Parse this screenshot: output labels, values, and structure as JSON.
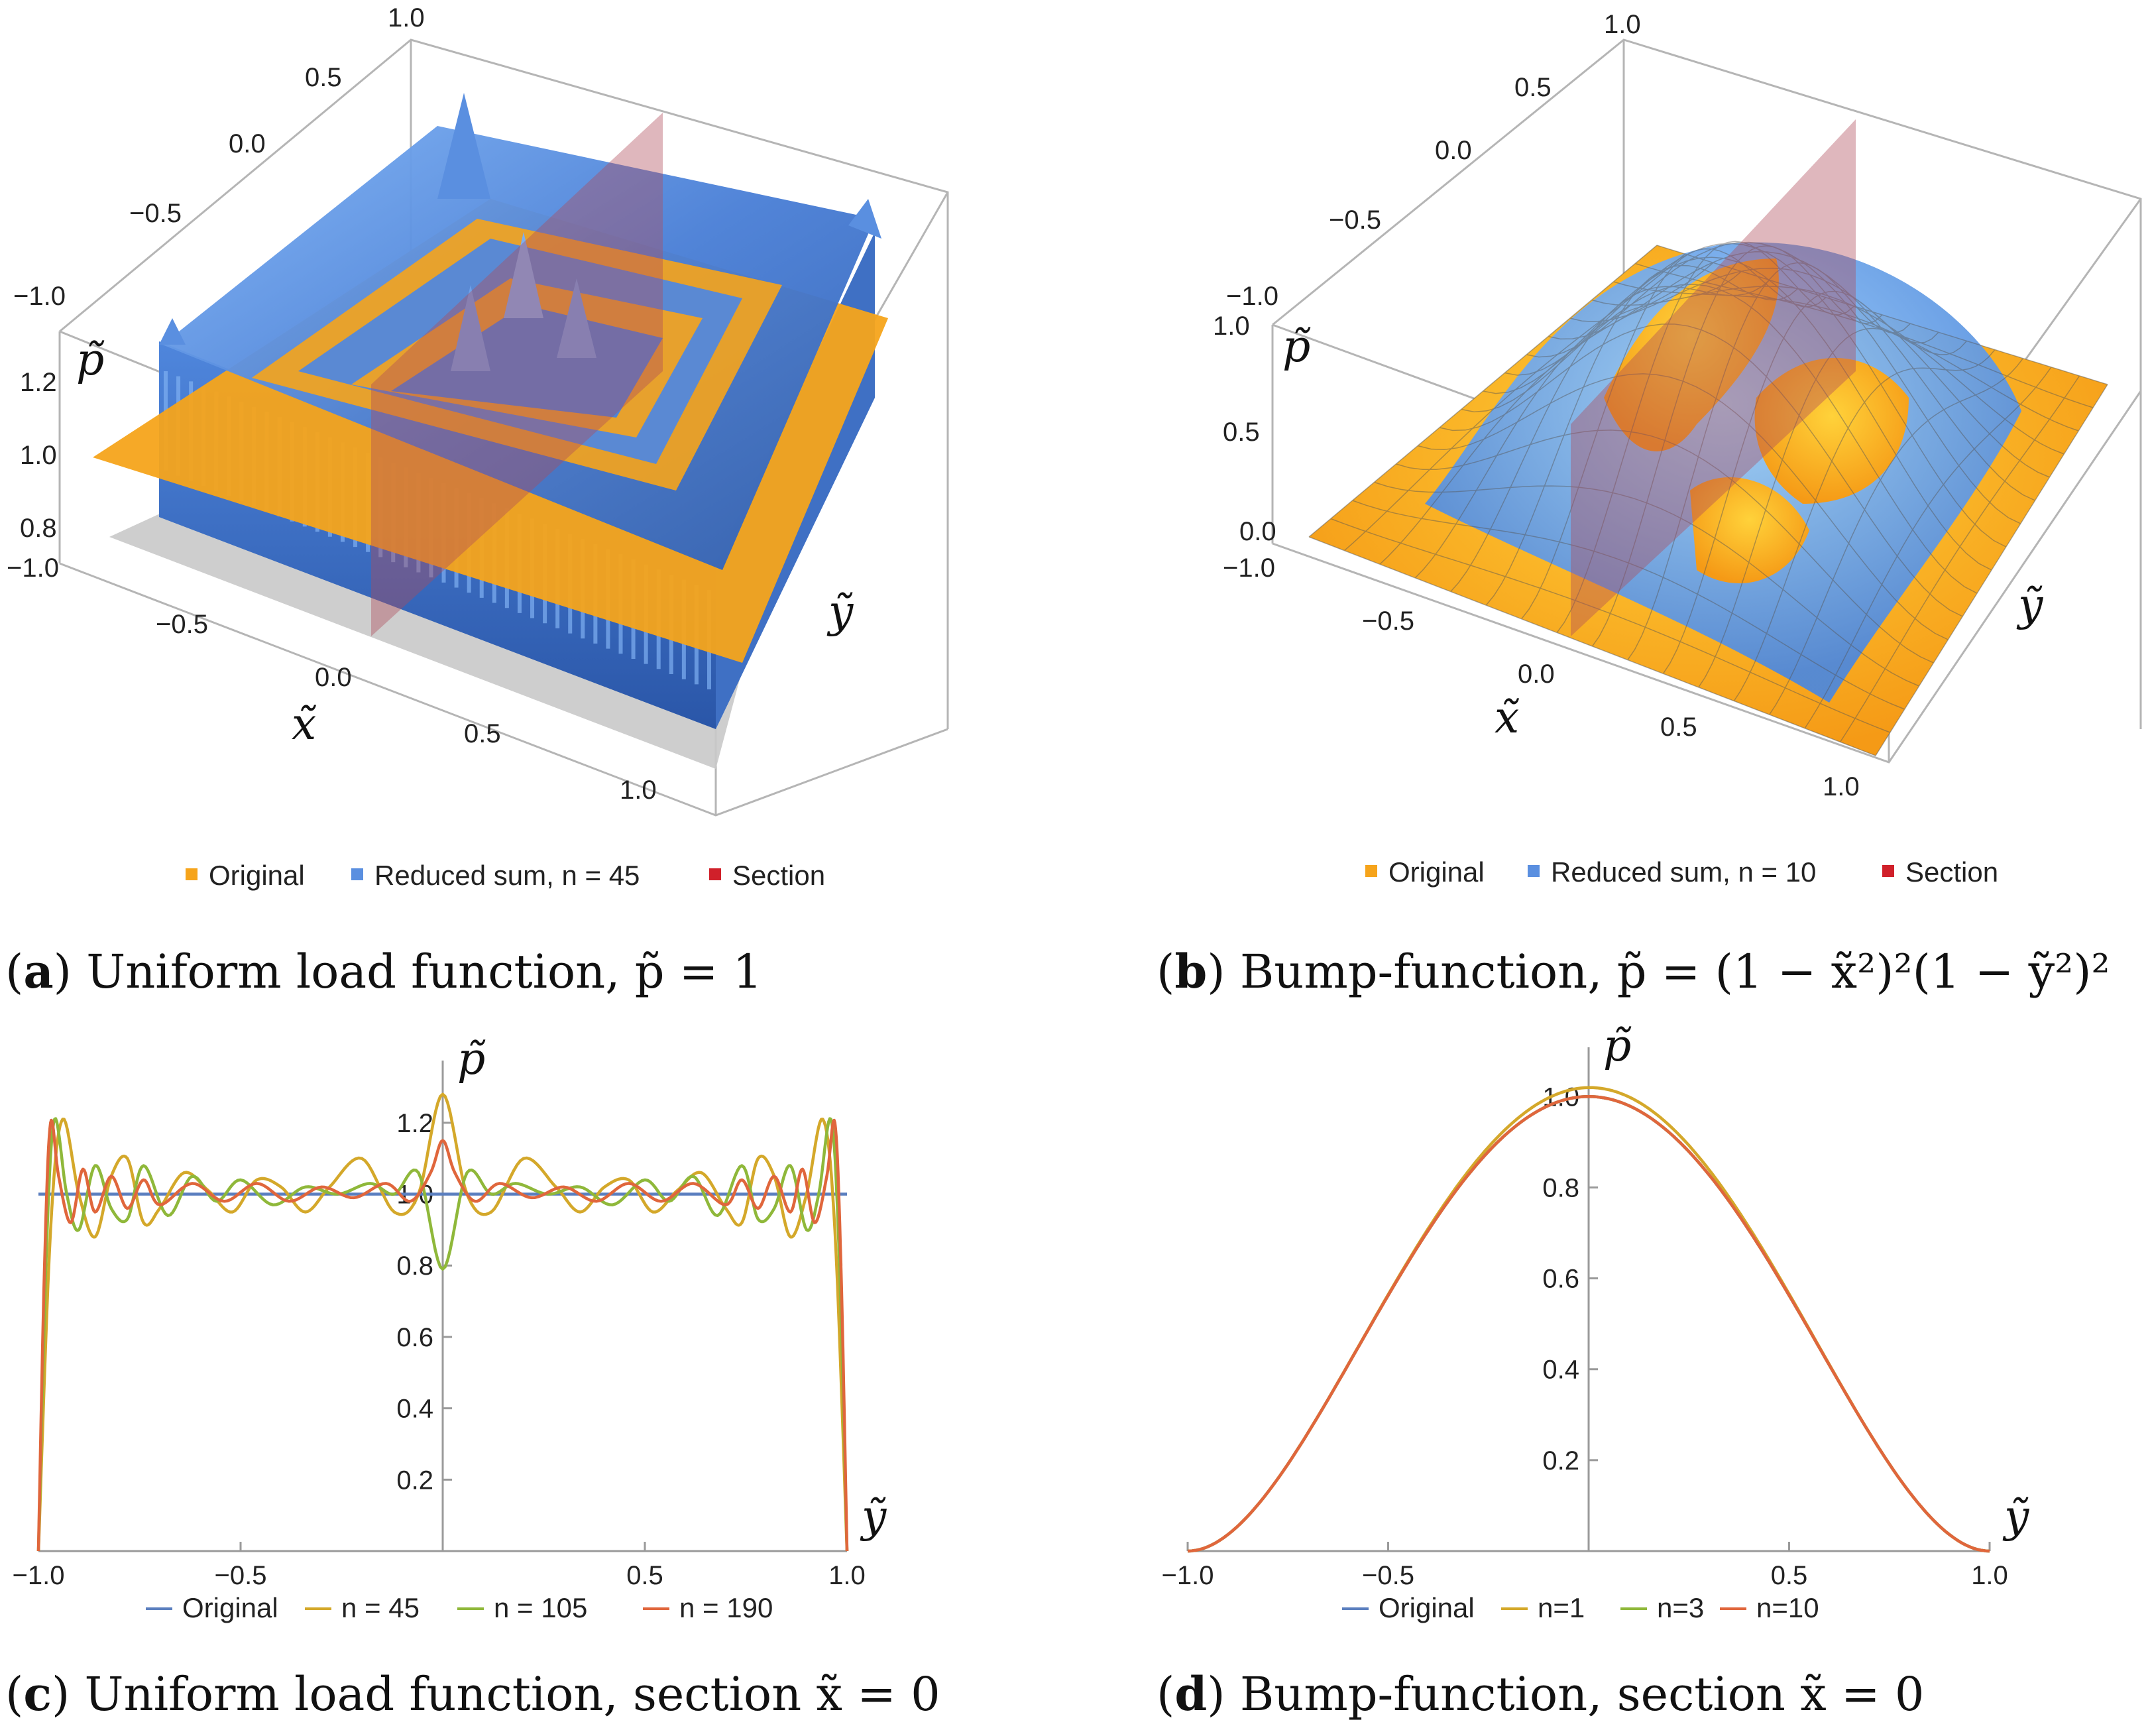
{
  "colors": {
    "original": "#5b7fbf",
    "n45": "#d4a82a",
    "n105": "#8fb83a",
    "n190": "#e0663c",
    "orange": "#f6a41b",
    "blue": "#5a8fe0",
    "section": "#c8707a",
    "axis": "#999999"
  },
  "panel_a": {
    "caption_letter": "a",
    "caption_text": "Uniform load function, p̃ = 1",
    "z_ticks": [
      "0.8",
      "1.0",
      "1.2"
    ],
    "x_ticks": [
      "−1.0",
      "−0.5",
      "0.0",
      "0.5",
      "1.0"
    ],
    "y_ticks": [
      "−1.0",
      "−0.5",
      "0.0",
      "0.5",
      "1.0"
    ],
    "xlabel": "x̃",
    "ylabel": "ỹ",
    "zlabel": "p̃",
    "legend": [
      "Original",
      "Reduced sum, n = 45",
      "Section"
    ]
  },
  "panel_b": {
    "caption_letter": "b",
    "caption_text": "Bump-function, p̃ = (1 − x̃²)²(1 − ỹ²)²",
    "z_ticks": [
      "0.0",
      "0.5",
      "1.0"
    ],
    "x_ticks": [
      "−1.0",
      "−0.5",
      "0.0",
      "0.5",
      "1.0"
    ],
    "y_ticks": [
      "−1.0",
      "−0.5",
      "0.0",
      "0.5",
      "1.0"
    ],
    "xlabel": "x̃",
    "ylabel": "ỹ",
    "zlabel": "p̃",
    "legend": [
      "Original",
      "Reduced sum, n = 10",
      "Section"
    ]
  },
  "chart_data": [
    {
      "type": "surface",
      "title": "Uniform load function, p̃ = 1",
      "xlabel": "x̃",
      "ylabel": "ỹ",
      "zlabel": "p̃",
      "zlim": [
        0.8,
        1.3
      ],
      "series": [
        {
          "name": "Original",
          "value": 1.0
        },
        {
          "name": "Reduced sum, n = 45"
        },
        {
          "name": "Section",
          "x": 0
        }
      ]
    },
    {
      "type": "surface",
      "title": "Bump-function",
      "xlabel": "x̃",
      "ylabel": "ỹ",
      "zlabel": "p̃",
      "zlim": [
        0,
        1.05
      ],
      "series": [
        {
          "name": "Original"
        },
        {
          "name": "Reduced sum, n = 10"
        },
        {
          "name": "Section",
          "x": 0
        }
      ]
    },
    {
      "type": "line",
      "title": "Uniform load function, section x̃ = 0",
      "xlabel": "ỹ",
      "ylabel": "p̃",
      "xlim": [
        -1,
        1
      ],
      "ylim": [
        0,
        1.3
      ],
      "x_ticks": [
        -1.0,
        -0.5,
        0.5,
        1.0
      ],
      "x_tick_labels": [
        "−1.0",
        "−0.5",
        "0.5",
        "1.0"
      ],
      "y_ticks": [
        0.2,
        0.4,
        0.6,
        0.8,
        1.0,
        1.2
      ],
      "y_tick_labels": [
        "0.2",
        "0.4",
        "0.6",
        "0.8",
        "1.0",
        "1.2"
      ],
      "series": [
        {
          "name": "Original",
          "color": "#5b7fbf",
          "x": [
            -1.0,
            1.0
          ],
          "y": [
            1.0,
            1.0
          ]
        },
        {
          "name": "n = 45",
          "color": "#d4a82a",
          "x": [
            -1.0,
            -0.97,
            -0.94,
            -0.9,
            -0.86,
            -0.82,
            -0.78,
            -0.74,
            -0.7,
            -0.64,
            -0.58,
            -0.52,
            -0.46,
            -0.4,
            -0.34,
            -0.28,
            -0.2,
            -0.12,
            -0.06,
            0,
            0.06,
            0.12,
            0.2,
            0.28,
            0.34,
            0.4,
            0.46,
            0.52,
            0.58,
            0.64,
            0.7,
            0.74,
            0.78,
            0.82,
            0.86,
            0.9,
            0.94,
            0.97,
            1.0
          ],
          "y": [
            0.0,
            0.9,
            1.21,
            1.0,
            0.88,
            1.05,
            1.1,
            0.92,
            0.96,
            1.06,
            1.01,
            0.95,
            1.04,
            1.02,
            0.95,
            1.02,
            1.1,
            0.95,
            1.0,
            1.28,
            1.0,
            0.95,
            1.1,
            1.02,
            0.95,
            1.02,
            1.04,
            0.95,
            1.01,
            1.06,
            0.96,
            0.92,
            1.1,
            1.05,
            0.88,
            1.0,
            1.21,
            0.9,
            0.0
          ]
        },
        {
          "name": "n = 105",
          "color": "#8fb83a",
          "x": [
            -1.0,
            -0.98,
            -0.96,
            -0.93,
            -0.9,
            -0.86,
            -0.82,
            -0.78,
            -0.74,
            -0.68,
            -0.62,
            -0.56,
            -0.5,
            -0.42,
            -0.34,
            -0.26,
            -0.18,
            -0.12,
            -0.06,
            0,
            0.06,
            0.12,
            0.18,
            0.26,
            0.34,
            0.42,
            0.5,
            0.56,
            0.62,
            0.68,
            0.74,
            0.78,
            0.82,
            0.86,
            0.9,
            0.93,
            0.96,
            0.98,
            1.0
          ],
          "y": [
            0.0,
            0.85,
            1.21,
            1.0,
            0.9,
            1.08,
            0.96,
            0.93,
            1.08,
            0.94,
            1.05,
            0.98,
            1.04,
            0.97,
            1.02,
            1.0,
            1.03,
            1.0,
            1.06,
            0.79,
            1.06,
            1.0,
            1.03,
            1.0,
            1.02,
            0.97,
            1.04,
            0.98,
            1.05,
            0.94,
            1.08,
            0.93,
            0.96,
            1.08,
            0.9,
            1.0,
            1.21,
            0.85,
            0.0
          ]
        },
        {
          "name": "n = 190",
          "color": "#e0663c",
          "x": [
            -1.0,
            -0.985,
            -0.97,
            -0.95,
            -0.92,
            -0.89,
            -0.86,
            -0.82,
            -0.78,
            -0.74,
            -0.7,
            -0.62,
            -0.54,
            -0.46,
            -0.38,
            -0.3,
            -0.22,
            -0.14,
            -0.08,
            -0.03,
            0,
            0.03,
            0.08,
            0.14,
            0.22,
            0.3,
            0.38,
            0.46,
            0.54,
            0.62,
            0.7,
            0.74,
            0.78,
            0.82,
            0.86,
            0.89,
            0.92,
            0.95,
            0.97,
            0.985,
            1.0
          ],
          "y": [
            0.0,
            0.8,
            1.2,
            1.05,
            0.92,
            1.07,
            0.95,
            1.05,
            0.96,
            1.04,
            0.97,
            1.03,
            0.98,
            1.03,
            0.98,
            1.02,
            0.99,
            1.03,
            0.98,
            1.06,
            1.15,
            1.06,
            0.98,
            1.03,
            0.99,
            1.02,
            0.98,
            1.03,
            0.98,
            1.03,
            0.97,
            1.04,
            0.96,
            1.05,
            0.95,
            1.07,
            0.92,
            1.05,
            1.2,
            0.8,
            0.0
          ]
        }
      ],
      "legend": [
        "Original",
        "n = 45",
        "n = 105",
        "n = 190"
      ]
    },
    {
      "type": "line",
      "title": "Bump-function, section x̃ = 0",
      "xlabel": "ỹ",
      "ylabel": "p̃",
      "xlim": [
        -1,
        1
      ],
      "ylim": [
        0,
        1.05
      ],
      "x_ticks": [
        -1.0,
        -0.5,
        0.5,
        1.0
      ],
      "x_tick_labels": [
        "−1.0",
        "−0.5",
        "0.5",
        "1.0"
      ],
      "y_ticks": [
        0.2,
        0.4,
        0.6,
        0.8,
        1.0
      ],
      "y_tick_labels": [
        "0.2",
        "0.4",
        "0.6",
        "0.8",
        "1.0"
      ],
      "series": [
        {
          "name": "Original",
          "color": "#5b7fbf",
          "function": "(1-y^2)^2"
        },
        {
          "name": "n=1",
          "color": "#d4a82a",
          "function": "(1-y^2)^2",
          "peak": 1.02
        },
        {
          "name": "n=3",
          "color": "#8fb83a",
          "function": "(1-y^2)^2"
        },
        {
          "name": "n=10",
          "color": "#e0663c",
          "function": "(1-y^2)^2"
        }
      ],
      "legend": [
        "Original",
        "n=1",
        "n=3",
        "n=10"
      ]
    }
  ],
  "captions": {
    "c_letter": "c",
    "c_text": "Uniform load function, section x̃ = 0",
    "d_letter": "d",
    "d_text": "Bump-function, section x̃ = 0"
  }
}
